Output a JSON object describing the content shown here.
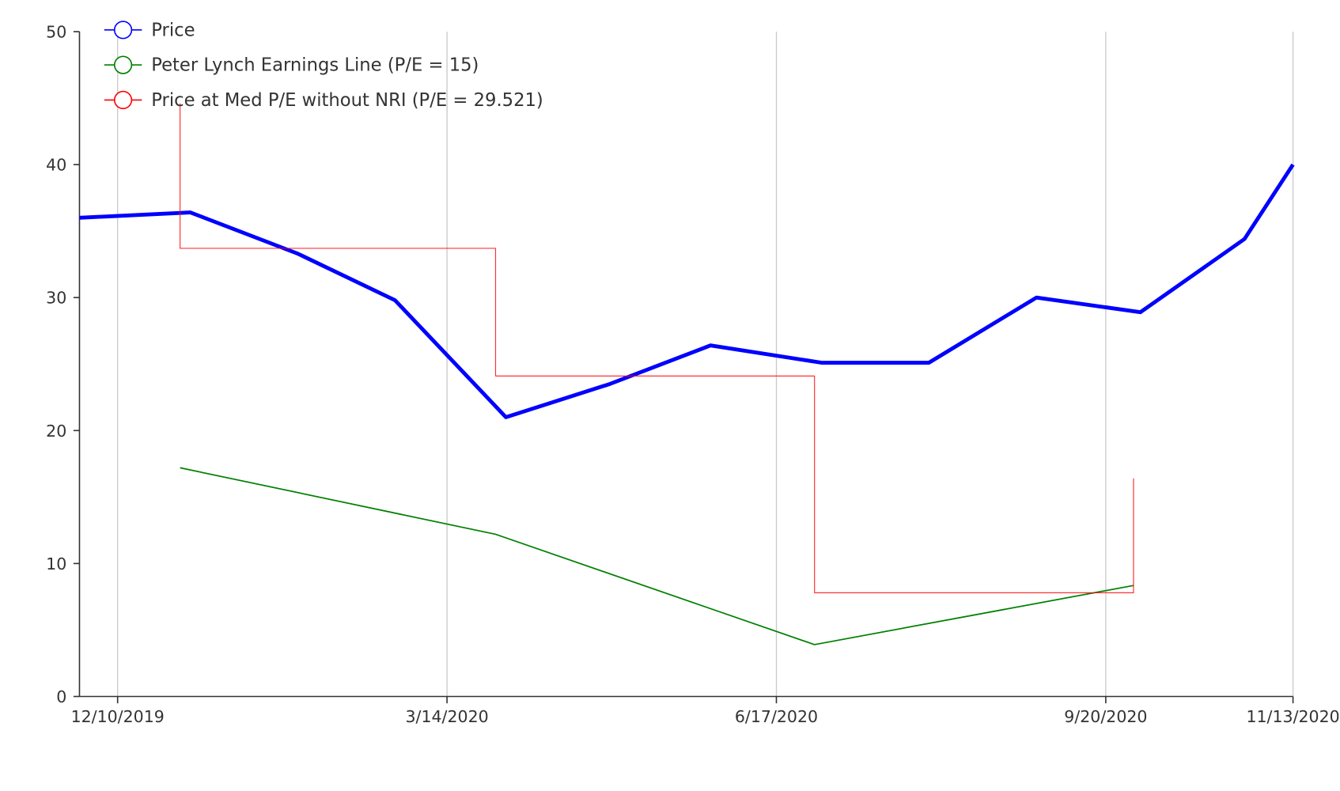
{
  "chart_data": {
    "type": "line",
    "title": "",
    "xlabel": "",
    "ylabel": "",
    "xlim": [
      "2019-11-29",
      "2020-11-13"
    ],
    "ylim": [
      0,
      50
    ],
    "yticks": [
      0,
      10,
      20,
      30,
      40,
      50
    ],
    "xticks": [
      {
        "date": "2019-12-10",
        "label": "12/10/2019"
      },
      {
        "date": "2020-03-14",
        "label": "3/14/2020"
      },
      {
        "date": "2020-06-17",
        "label": "6/17/2020"
      },
      {
        "date": "2020-09-20",
        "label": "9/20/2020"
      },
      {
        "date": "2020-11-13",
        "label": "11/13/2020"
      }
    ],
    "grid": "vertical",
    "legend_position": "top-left",
    "series": [
      {
        "name": "Price",
        "color": "#0000ff",
        "points": [
          [
            "2019-11-29",
            36.0
          ],
          [
            "2019-12-31",
            36.4
          ],
          [
            "2020-01-31",
            33.3
          ],
          [
            "2020-02-28",
            29.8
          ],
          [
            "2020-03-31",
            21.0
          ],
          [
            "2020-04-30",
            23.5
          ],
          [
            "2020-05-29",
            26.4
          ],
          [
            "2020-06-30",
            25.1
          ],
          [
            "2020-07-31",
            25.1
          ],
          [
            "2020-08-31",
            30.0
          ],
          [
            "2020-09-30",
            28.9
          ],
          [
            "2020-10-30",
            34.4
          ],
          [
            "2020-11-13",
            40.0
          ]
        ]
      },
      {
        "name": "Peter Lynch Earnings Line (P/E = 15)",
        "color": "#008000",
        "points": [
          [
            "2019-12-28",
            17.2
          ],
          [
            "2020-03-28",
            12.2
          ],
          [
            "2020-06-28",
            3.9
          ],
          [
            "2020-09-28",
            8.35
          ]
        ]
      },
      {
        "name": "Price at Med P/E without NRI (P/E = 29.521)",
        "color": "#ff0000",
        "points": [
          [
            "2019-12-28",
            44.6
          ],
          [
            "2019-12-28",
            33.7
          ],
          [
            "2020-03-28",
            33.7
          ],
          [
            "2020-03-28",
            24.1
          ],
          [
            "2020-06-28",
            24.1
          ],
          [
            "2020-06-28",
            7.8
          ],
          [
            "2020-09-28",
            7.8
          ],
          [
            "2020-09-28",
            16.4
          ]
        ]
      }
    ]
  }
}
